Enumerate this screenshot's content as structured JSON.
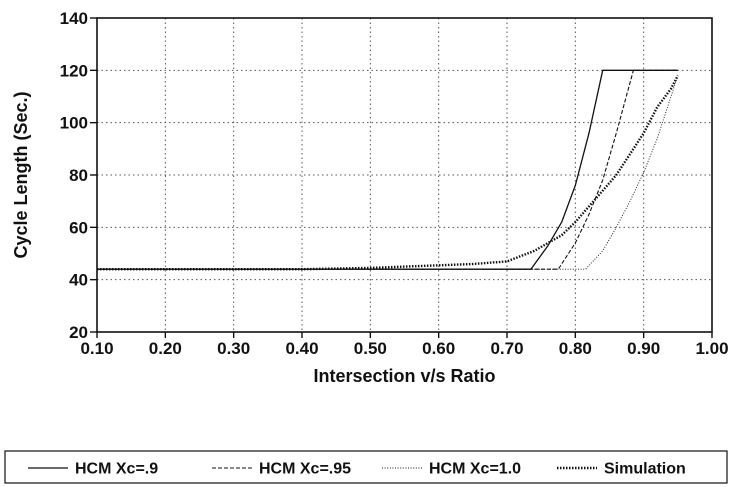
{
  "chart_data": {
    "type": "line",
    "xlabel": "Intersection v/s Ratio",
    "ylabel": "Cycle Length (Sec.)",
    "xlim": [
      0.1,
      1.0
    ],
    "ylim": [
      20,
      140
    ],
    "xticks": [
      "0.10",
      "0.20",
      "0.30",
      "0.40",
      "0.50",
      "0.60",
      "0.70",
      "0.80",
      "0.90",
      "1.00"
    ],
    "yticks": [
      "20",
      "40",
      "60",
      "80",
      "100",
      "120",
      "140"
    ],
    "grid": true,
    "legend_position": "bottom",
    "series": [
      {
        "name": "HCM Xc=.9",
        "style": "solid",
        "color": "#111111",
        "x": [
          0.1,
          0.735,
          0.76,
          0.78,
          0.8,
          0.82,
          0.84,
          0.95
        ],
        "y": [
          44,
          44,
          53,
          62,
          76,
          96,
          120,
          120
        ]
      },
      {
        "name": "HCM Xc=.95",
        "style": "dashed",
        "color": "#111111",
        "x": [
          0.1,
          0.775,
          0.8,
          0.82,
          0.84,
          0.86,
          0.885,
          0.95
        ],
        "y": [
          44,
          44,
          54,
          65,
          78,
          96,
          120,
          120
        ]
      },
      {
        "name": "HCM Xc=1.0",
        "style": "dotted",
        "color": "#111111",
        "x": [
          0.1,
          0.815,
          0.84,
          0.86,
          0.88,
          0.9,
          0.92,
          0.94,
          0.95
        ],
        "y": [
          44,
          44,
          51,
          60,
          70,
          81,
          94,
          110,
          118
        ]
      },
      {
        "name": "Simulation",
        "style": "heavy-dotted",
        "color": "#111111",
        "x": [
          0.1,
          0.4,
          0.5,
          0.55,
          0.6,
          0.65,
          0.7,
          0.72,
          0.74,
          0.76,
          0.78,
          0.8,
          0.82,
          0.84,
          0.86,
          0.88,
          0.9,
          0.92,
          0.94,
          0.95
        ],
        "y": [
          44,
          44,
          44.5,
          45,
          45.5,
          46,
          47,
          49,
          51,
          54,
          57,
          62,
          68,
          74,
          80,
          88,
          96,
          106,
          113,
          118
        ]
      }
    ]
  }
}
